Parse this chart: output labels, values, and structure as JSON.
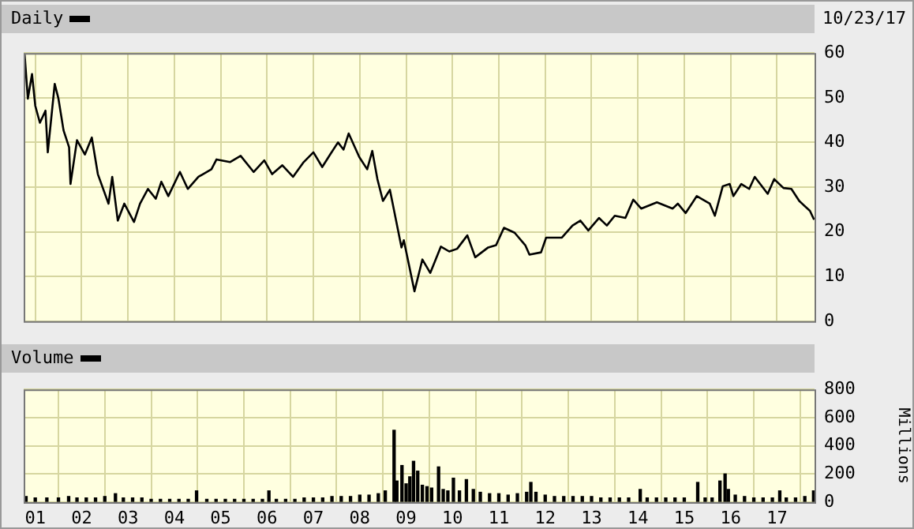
{
  "chart_data": [
    {
      "type": "line",
      "legend": "top left",
      "marker": "none",
      "grid": true,
      "tick_labels": "y",
      "annotations": [
        "10/23/17"
      ],
      "xlim": [
        2000.75,
        2017.81
      ],
      "xticks": [
        {
          "value": 2001,
          "label": null
        },
        {
          "value": 2002,
          "label": null
        },
        {
          "value": 2003,
          "label": null
        },
        {
          "value": 2004,
          "label": null
        },
        {
          "value": 2005,
          "label": null
        },
        {
          "value": 2006,
          "label": null
        },
        {
          "value": 2007,
          "label": null
        },
        {
          "value": 2008,
          "label": null
        },
        {
          "value": 2009,
          "label": null
        },
        {
          "value": 2010,
          "label": null
        },
        {
          "value": 2011,
          "label": null
        },
        {
          "value": 2012,
          "label": null
        },
        {
          "value": 2013,
          "label": null
        },
        {
          "value": 2014,
          "label": null
        },
        {
          "value": 2015,
          "label": null
        },
        {
          "value": 2016,
          "label": null
        },
        {
          "value": 2017,
          "label": null
        }
      ],
      "ylim": [
        0,
        60
      ],
      "yticks": [
        0,
        10,
        20,
        30,
        40,
        50,
        60
      ],
      "x": [
        2000.77,
        2000.84,
        2000.93,
        2001.0,
        2001.1,
        2001.22,
        2001.27,
        2001.42,
        2001.5,
        2001.61,
        2001.73,
        2001.76,
        2001.9,
        2002.07,
        2002.22,
        2002.35,
        2002.58,
        2002.66,
        2002.78,
        2002.92,
        2003.13,
        2003.26,
        2003.43,
        2003.6,
        2003.72,
        2003.87,
        2004.12,
        2004.29,
        2004.52,
        2004.8,
        2004.91,
        2005.2,
        2005.43,
        2005.71,
        2005.94,
        2006.11,
        2006.33,
        2006.56,
        2006.79,
        2007.0,
        2007.19,
        2007.36,
        2007.53,
        2007.65,
        2007.76,
        2007.99,
        2008.16,
        2008.27,
        2008.38,
        2008.5,
        2008.65,
        2008.9,
        2008.95,
        2009.18,
        2009.35,
        2009.52,
        2009.75,
        2009.93,
        2010.1,
        2010.32,
        2010.49,
        2010.77,
        2010.94,
        2011.11,
        2011.34,
        2011.57,
        2011.66,
        2011.91,
        2012.02,
        2012.36,
        2012.59,
        2012.76,
        2012.93,
        2013.16,
        2013.33,
        2013.5,
        2013.73,
        2013.9,
        2014.07,
        2014.41,
        2014.75,
        2014.86,
        2015.03,
        2015.27,
        2015.55,
        2015.66,
        2015.83,
        2015.98,
        2016.06,
        2016.23,
        2016.4,
        2016.52,
        2016.8,
        2016.94,
        2017.14,
        2017.31,
        2017.48,
        2017.71,
        2017.8
      ],
      "series": [
        {
          "name": "Daily",
          "color": "#000000",
          "values": [
            59.7,
            49.8,
            55.3,
            48.2,
            44.4,
            47.1,
            37.8,
            53.1,
            49.8,
            42.7,
            38.9,
            30.7,
            40.5,
            37.3,
            41.1,
            32.9,
            26.3,
            32.3,
            22.5,
            26.3,
            22.2,
            26.3,
            29.6,
            27.4,
            31.2,
            28,
            33.4,
            29.6,
            32.3,
            34,
            36.2,
            35.6,
            37,
            33.4,
            36,
            32.9,
            34.9,
            32.3,
            35.6,
            37.8,
            34.5,
            37.3,
            40,
            38.4,
            42,
            36.7,
            34,
            38.1,
            31.8,
            26.9,
            29.4,
            16.5,
            18.1,
            6.7,
            13.8,
            10.8,
            16.7,
            15.6,
            16.2,
            19.2,
            14.3,
            16.5,
            17,
            20.9,
            19.8,
            17,
            14.9,
            15.4,
            18.7,
            18.7,
            21.4,
            22.5,
            20.3,
            23.1,
            21.4,
            23.6,
            23.1,
            27.2,
            25.2,
            26.6,
            25.2,
            26.3,
            24.2,
            28,
            26.3,
            23.6,
            30.2,
            30.7,
            28,
            30.7,
            29.6,
            32.3,
            28.5,
            31.8,
            29.8,
            29.6,
            26.9,
            24.7,
            22.7
          ]
        }
      ]
    },
    {
      "type": "bar",
      "legend": "top left",
      "grid": true,
      "ylabel": "Millions",
      "xlim": [
        2000.75,
        2017.81
      ],
      "xticks": [
        {
          "value": 2001,
          "label": "01"
        },
        {
          "value": 2002,
          "label": "02"
        },
        {
          "value": 2003,
          "label": "03"
        },
        {
          "value": 2004,
          "label": "04"
        },
        {
          "value": 2005,
          "label": "05"
        },
        {
          "value": 2006,
          "label": "06"
        },
        {
          "value": 2007,
          "label": "07"
        },
        {
          "value": 2008,
          "label": "08"
        },
        {
          "value": 2009,
          "label": "09"
        },
        {
          "value": 2010,
          "label": "10"
        },
        {
          "value": 2011,
          "label": "11"
        },
        {
          "value": 2012,
          "label": "12"
        },
        {
          "value": 2013,
          "label": "13"
        },
        {
          "value": 2014,
          "label": "14"
        },
        {
          "value": 2015,
          "label": "15"
        },
        {
          "value": 2016,
          "label": "16"
        },
        {
          "value": 2017,
          "label": "17"
        }
      ],
      "ylim": [
        0,
        800
      ],
      "yticks": [
        0,
        200,
        400,
        600,
        800
      ],
      "x": [
        2000.8,
        2001.0,
        2001.25,
        2001.5,
        2001.72,
        2001.9,
        2002.1,
        2002.3,
        2002.5,
        2002.73,
        2002.9,
        2003.1,
        2003.3,
        2003.5,
        2003.7,
        2003.9,
        2004.1,
        2004.3,
        2004.48,
        2004.7,
        2004.9,
        2005.1,
        2005.3,
        2005.5,
        2005.7,
        2005.9,
        2006.04,
        2006.2,
        2006.4,
        2006.6,
        2006.8,
        2007.0,
        2007.2,
        2007.4,
        2007.6,
        2007.8,
        2008.0,
        2008.2,
        2008.4,
        2008.55,
        2008.74,
        2008.8,
        2008.91,
        2009.0,
        2009.08,
        2009.16,
        2009.25,
        2009.35,
        2009.45,
        2009.55,
        2009.7,
        2009.8,
        2009.9,
        2010.02,
        2010.15,
        2010.3,
        2010.45,
        2010.6,
        2010.8,
        2011.0,
        2011.2,
        2011.4,
        2011.6,
        2011.69,
        2011.8,
        2012.0,
        2012.2,
        2012.4,
        2012.6,
        2012.8,
        2013.0,
        2013.2,
        2013.4,
        2013.6,
        2013.8,
        2014.05,
        2014.2,
        2014.4,
        2014.6,
        2014.8,
        2015.0,
        2015.29,
        2015.45,
        2015.6,
        2015.77,
        2015.88,
        2015.95,
        2016.1,
        2016.3,
        2016.5,
        2016.7,
        2016.9,
        2017.06,
        2017.2,
        2017.4,
        2017.6,
        2017.79
      ],
      "series": [
        {
          "name": "Volume",
          "color": "#000000",
          "values": [
            40,
            30,
            30,
            30,
            40,
            30,
            30,
            30,
            40,
            60,
            30,
            30,
            30,
            20,
            20,
            20,
            20,
            20,
            80,
            20,
            20,
            20,
            20,
            20,
            20,
            20,
            80,
            20,
            20,
            20,
            30,
            30,
            30,
            40,
            40,
            40,
            50,
            50,
            60,
            80,
            510,
            150,
            260,
            130,
            180,
            290,
            220,
            120,
            110,
            100,
            250,
            90,
            80,
            170,
            80,
            160,
            90,
            70,
            60,
            60,
            50,
            60,
            70,
            140,
            70,
            50,
            40,
            40,
            40,
            40,
            40,
            30,
            30,
            30,
            30,
            90,
            30,
            30,
            30,
            30,
            30,
            140,
            30,
            30,
            150,
            200,
            90,
            50,
            40,
            30,
            30,
            30,
            80,
            30,
            30,
            40,
            80
          ]
        }
      ]
    }
  ]
}
